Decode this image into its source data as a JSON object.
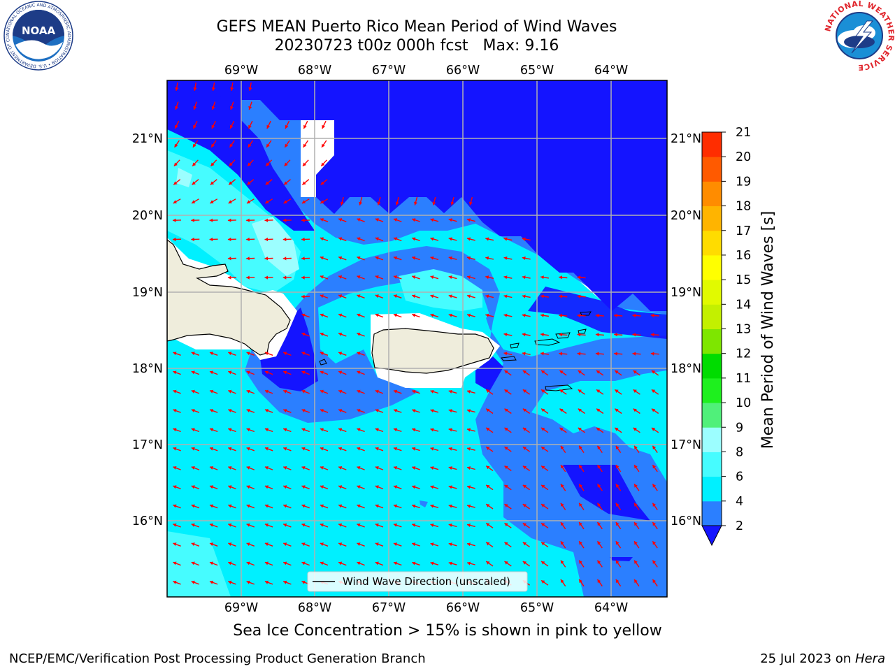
{
  "title_line1": "GEFS MEAN Puerto Rico Mean Period of Wind Waves",
  "title_line2_run": "20230723 t00z 000h fcst",
  "title_line2_max": "Max: 9.16",
  "subtitle": "Sea Ice Concentration > 15% is shown in pink to yellow",
  "footer_left": "NCEP/EMC/Verification Post Processing Product Generation Branch",
  "footer_right_date": "25 Jul 2023 on",
  "footer_right_machine": "Hera",
  "logos": {
    "noaa_text": "NOAA",
    "noaa_ring": "NATIONAL OCEANIC AND ATMOSPHERIC ADMINISTRATION • U.S. DEPARTMENT OF COMMERCE",
    "nws_ring": "NATIONAL WEATHER SERVICE"
  },
  "map": {
    "lon_labels": [
      "69°W",
      "68°W",
      "67°W",
      "66°W",
      "65°W",
      "64°W"
    ],
    "lat_labels": [
      "21°N",
      "20°N",
      "19°N",
      "18°N",
      "17°N",
      "16°N"
    ],
    "land_color": "#efeddc",
    "legend_label": "Wind Wave Direction (unscaled)",
    "arrow_color": "#ff0000"
  },
  "colorbar": {
    "label": "Mean Period of Wind Waves [s]",
    "ticks": [
      "2",
      "4",
      "6",
      "8",
      "9",
      "10",
      "11",
      "12",
      "13",
      "14",
      "15",
      "16",
      "17",
      "18",
      "19",
      "20",
      "21"
    ],
    "colors": [
      "#1414ff",
      "#2b7fff",
      "#00f0ff",
      "#46fcff",
      "#9cfeff",
      "#50f07a",
      "#1ef01e",
      "#00dc00",
      "#7ee600",
      "#c3f000",
      "#e1fa00",
      "#ffff00",
      "#ffdc00",
      "#ffb400",
      "#ff8c00",
      "#ff5a00",
      "#ff2d00",
      "#ff0000"
    ]
  }
}
